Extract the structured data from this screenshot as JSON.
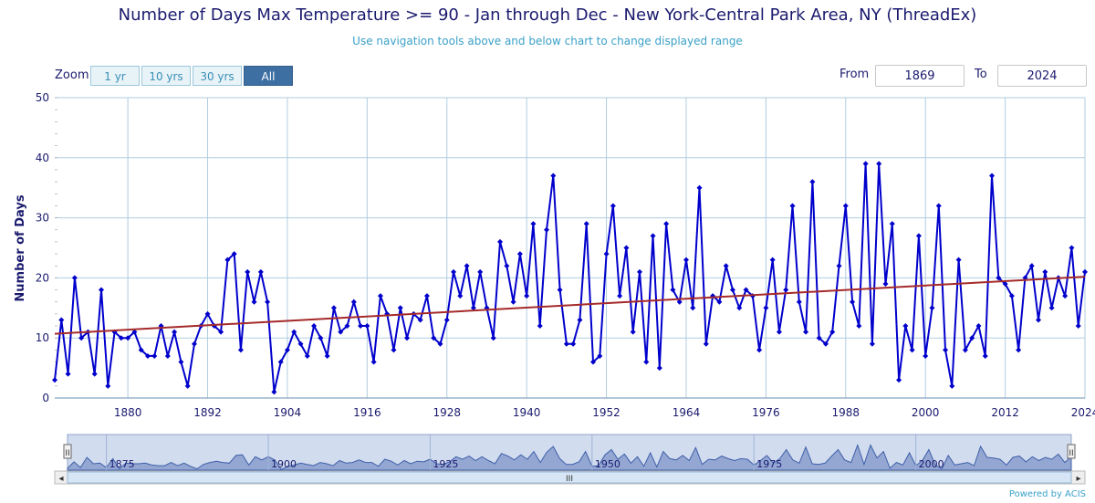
{
  "title": "Number of Days Max Temperature >= 90 - Jan through Dec - New York-Central Park Area, NY (ThreadEx)",
  "subtitle": "Use navigation tools above and below chart to change displayed range",
  "zoom": {
    "label": "Zoom",
    "buttons": [
      "1 yr",
      "10 yrs",
      "30 yrs",
      "All"
    ],
    "active": "All"
  },
  "range": {
    "from_label": "From",
    "from_value": "1869",
    "to_label": "To",
    "to_value": "2024"
  },
  "powered_by": "Powered by ACIS",
  "navigator": {
    "labels": [
      "1875",
      "1900",
      "1925",
      "1950",
      "1975",
      "2000"
    ],
    "handle_glyph": "II",
    "scroll_glyph": "III",
    "left_arrow": "◂",
    "right_arrow": "▸"
  },
  "colors": {
    "series": "#0000cc",
    "trend": "#a52a2a",
    "grid": "#b0cde0",
    "axis_text": "#1a1a6e"
  },
  "chart_data": {
    "type": "line",
    "ylabel": "Number of Days",
    "xlim": [
      1869,
      2024
    ],
    "ylim": [
      0,
      50
    ],
    "yticks": [
      0,
      10,
      20,
      30,
      40,
      50
    ],
    "xticks": [
      1880,
      1892,
      1904,
      1916,
      1928,
      1940,
      1952,
      1964,
      1976,
      1988,
      2000,
      2012,
      2024
    ],
    "grid": true,
    "legend": "none",
    "series": [
      {
        "x": [
          1869,
          1870,
          1871,
          1872,
          1873,
          1874,
          1875,
          1876,
          1877,
          1878,
          1879,
          1880,
          1881,
          1882,
          1883,
          1884,
          1885,
          1886,
          1887,
          1888,
          1889,
          1890,
          1891,
          1892,
          1893,
          1894,
          1895,
          1896,
          1897,
          1898,
          1899,
          1900,
          1901,
          1902,
          1903,
          1904,
          1905,
          1906,
          1907,
          1908,
          1909,
          1910,
          1911,
          1912,
          1913,
          1914,
          1915,
          1916,
          1917,
          1918,
          1919,
          1920,
          1921,
          1922,
          1923,
          1924,
          1925,
          1926,
          1927,
          1928,
          1929,
          1930,
          1931,
          1932,
          1933,
          1934,
          1935,
          1936,
          1937,
          1938,
          1939,
          1940,
          1941,
          1942,
          1943,
          1944,
          1945,
          1946,
          1947,
          1948,
          1949,
          1950,
          1951,
          1952,
          1953,
          1954,
          1955,
          1956,
          1957,
          1958,
          1959,
          1960,
          1961,
          1962,
          1963,
          1964,
          1965,
          1966,
          1967,
          1968,
          1969,
          1970,
          1971,
          1972,
          1973,
          1974,
          1975,
          1976,
          1977,
          1978,
          1979,
          1980,
          1981,
          1982,
          1983,
          1984,
          1985,
          1986,
          1987,
          1988,
          1989,
          1990,
          1991,
          1992,
          1993,
          1994,
          1995,
          1996,
          1997,
          1998,
          1999,
          2000,
          2001,
          2002,
          2003,
          2004,
          2005,
          2006,
          2007,
          2008,
          2009,
          2010,
          2011,
          2012,
          2013,
          2014,
          2015,
          2016,
          2017,
          2018,
          2019,
          2020,
          2021,
          2022,
          2023,
          2024
        ],
        "values": [
          3,
          13,
          4,
          20,
          10,
          11,
          4,
          18,
          2,
          11,
          10,
          10,
          11,
          8,
          7,
          7,
          12,
          7,
          11,
          6,
          2,
          9,
          12,
          14,
          12,
          11,
          23,
          24,
          8,
          21,
          16,
          21,
          16,
          1,
          6,
          8,
          11,
          9,
          7,
          12,
          10,
          7,
          15,
          11,
          12,
          16,
          12,
          12,
          6,
          17,
          14,
          8,
          15,
          10,
          14,
          13,
          17,
          10,
          9,
          13,
          21,
          17,
          22,
          15,
          21,
          15,
          10,
          26,
          22,
          16,
          24,
          17,
          29,
          12,
          28,
          37,
          18,
          9,
          9,
          13,
          29,
          6,
          7,
          24,
          32,
          17,
          25,
          11,
          21,
          6,
          27,
          5,
          29,
          18,
          16,
          23,
          15,
          35,
          9,
          17,
          16,
          22,
          18,
          15,
          18,
          17,
          8,
          15,
          23,
          11,
          18,
          32,
          16,
          11,
          36,
          10,
          9,
          11,
          22,
          32,
          16,
          12,
          39,
          9,
          39,
          19,
          29,
          3,
          12,
          8,
          27,
          7,
          15,
          32,
          8,
          2,
          23,
          8,
          10,
          12,
          7,
          37,
          20,
          19,
          17,
          8,
          20,
          22,
          13,
          21,
          15,
          20,
          17,
          25,
          12,
          21
        ]
      },
      {
        "name": "trend",
        "x": [
          1869,
          2024
        ],
        "values": [
          10.7,
          20.2
        ]
      }
    ]
  }
}
